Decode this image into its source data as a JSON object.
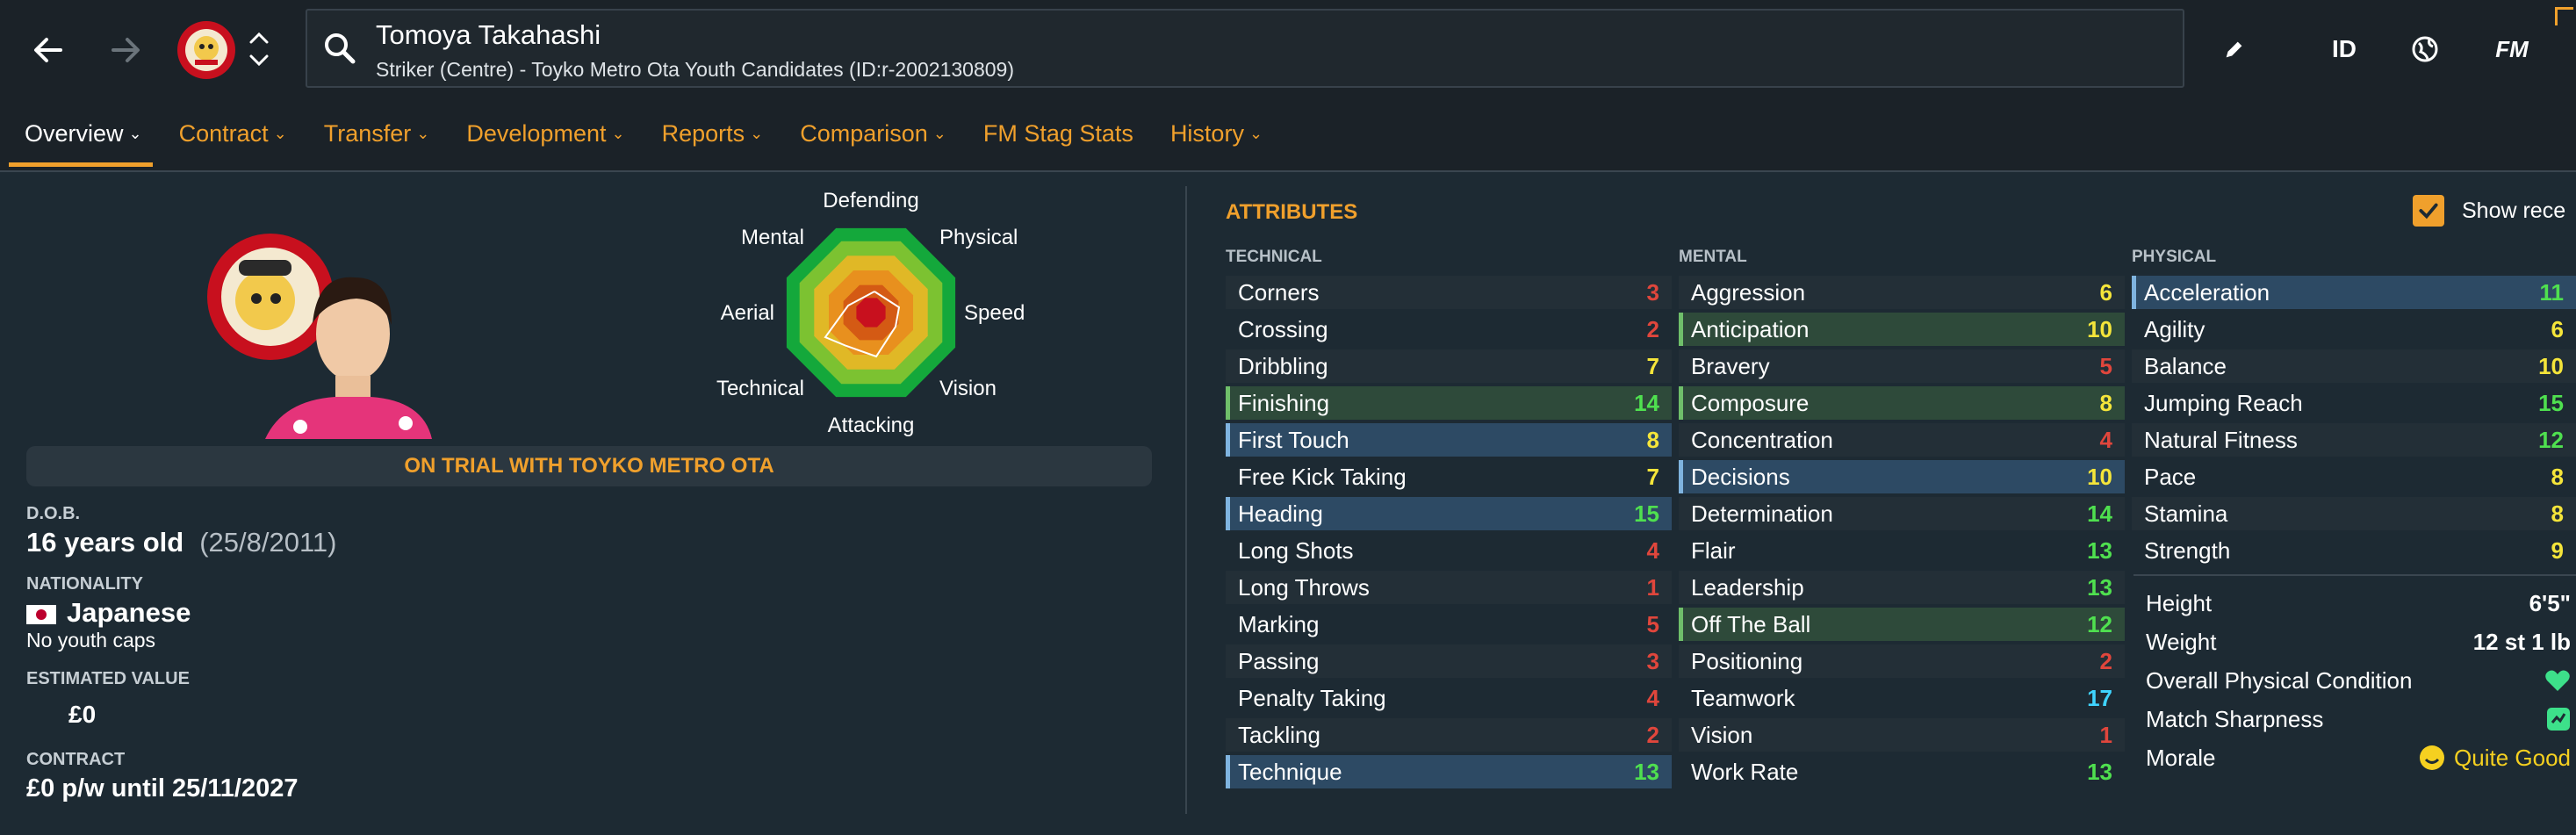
{
  "header": {
    "player_name": "Tomoya Takahashi",
    "player_subtitle": "Striker (Centre) - Toyko Metro Ota Youth Candidates (ID:r-2002130809)",
    "tool_id_label": "ID",
    "tool_fm_label": "FM",
    "icons": [
      "back-arrow-icon",
      "forward-arrow-icon",
      "club-crest",
      "up-down-chevron-icon",
      "search-icon",
      "pencil-icon",
      "globe-icon"
    ]
  },
  "tabs": [
    {
      "label": "Overview",
      "has_menu": true,
      "active": true
    },
    {
      "label": "Contract",
      "has_menu": true
    },
    {
      "label": "Transfer",
      "has_menu": true
    },
    {
      "label": "Development",
      "has_menu": true
    },
    {
      "label": "Reports",
      "has_menu": true
    },
    {
      "label": "Comparison",
      "has_menu": true
    },
    {
      "label": "FM Stag Stats",
      "has_menu": false
    },
    {
      "label": "History",
      "has_menu": true
    }
  ],
  "radar": {
    "labels": {
      "defending": "Defending",
      "physical": "Physical",
      "speed": "Speed",
      "vision": "Vision",
      "attacking": "Attacking",
      "technical": "Technical",
      "aerial": "Aerial",
      "mental": "Mental"
    },
    "ring_colors": [
      "#14a83b",
      "#7cc231",
      "#e0b826",
      "#e8901e",
      "#d45a14",
      "#c8101e"
    ]
  },
  "profile": {
    "trial_banner": "ON TRIAL WITH TOYKO METRO OTA",
    "dob_label": "D.O.B.",
    "age": "16 years old",
    "dob_date": "(25/8/2011)",
    "nationality_label": "NATIONALITY",
    "nationality": "Japanese",
    "youth_caps": "No youth caps",
    "value_label": "ESTIMATED VALUE",
    "value": "£0",
    "contract_label": "CONTRACT",
    "contract": "£0 p/w until 25/11/2027"
  },
  "attributes": {
    "title": "ATTRIBUTES",
    "show_recent_label": "Show rece",
    "technical": {
      "heading": "TECHNICAL",
      "items": [
        {
          "name": "Corners",
          "value": "3",
          "color": "#e0463c",
          "hl": ""
        },
        {
          "name": "Crossing",
          "value": "2",
          "color": "#e0463c",
          "hl": ""
        },
        {
          "name": "Dribbling",
          "value": "7",
          "color": "#f5e53a",
          "hl": ""
        },
        {
          "name": "Finishing",
          "value": "14",
          "color": "#4fe04f",
          "hl": "green"
        },
        {
          "name": "First Touch",
          "value": "8",
          "color": "#f5e53a",
          "hl": "blue"
        },
        {
          "name": "Free Kick Taking",
          "value": "7",
          "color": "#f5e53a",
          "hl": ""
        },
        {
          "name": "Heading",
          "value": "15",
          "color": "#4fe04f",
          "hl": "blue"
        },
        {
          "name": "Long Shots",
          "value": "4",
          "color": "#e0463c",
          "hl": ""
        },
        {
          "name": "Long Throws",
          "value": "1",
          "color": "#e0463c",
          "hl": ""
        },
        {
          "name": "Marking",
          "value": "5",
          "color": "#e0463c",
          "hl": ""
        },
        {
          "name": "Passing",
          "value": "3",
          "color": "#e0463c",
          "hl": ""
        },
        {
          "name": "Penalty Taking",
          "value": "4",
          "color": "#e0463c",
          "hl": ""
        },
        {
          "name": "Tackling",
          "value": "2",
          "color": "#e0463c",
          "hl": ""
        },
        {
          "name": "Technique",
          "value": "13",
          "color": "#4fe04f",
          "hl": "blue"
        }
      ]
    },
    "mental": {
      "heading": "MENTAL",
      "items": [
        {
          "name": "Aggression",
          "value": "6",
          "color": "#f5e53a",
          "hl": ""
        },
        {
          "name": "Anticipation",
          "value": "10",
          "color": "#f5e53a",
          "hl": "green"
        },
        {
          "name": "Bravery",
          "value": "5",
          "color": "#e0463c",
          "hl": ""
        },
        {
          "name": "Composure",
          "value": "8",
          "color": "#f5e53a",
          "hl": "green"
        },
        {
          "name": "Concentration",
          "value": "4",
          "color": "#e0463c",
          "hl": ""
        },
        {
          "name": "Decisions",
          "value": "10",
          "color": "#f5e53a",
          "hl": "blue"
        },
        {
          "name": "Determination",
          "value": "14",
          "color": "#4fe04f",
          "hl": ""
        },
        {
          "name": "Flair",
          "value": "13",
          "color": "#4fe04f",
          "hl": ""
        },
        {
          "name": "Leadership",
          "value": "13",
          "color": "#4fe04f",
          "hl": ""
        },
        {
          "name": "Off The Ball",
          "value": "12",
          "color": "#4fe04f",
          "hl": "green"
        },
        {
          "name": "Positioning",
          "value": "2",
          "color": "#e0463c",
          "hl": ""
        },
        {
          "name": "Teamwork",
          "value": "17",
          "color": "#3fd4ff",
          "hl": ""
        },
        {
          "name": "Vision",
          "value": "1",
          "color": "#e0463c",
          "hl": ""
        },
        {
          "name": "Work Rate",
          "value": "13",
          "color": "#4fe04f",
          "hl": ""
        }
      ]
    },
    "physical": {
      "heading": "PHYSICAL",
      "items": [
        {
          "name": "Acceleration",
          "value": "11",
          "color": "#4fe04f",
          "hl": "blue"
        },
        {
          "name": "Agility",
          "value": "6",
          "color": "#f5e53a",
          "hl": ""
        },
        {
          "name": "Balance",
          "value": "10",
          "color": "#f5e53a",
          "hl": ""
        },
        {
          "name": "Jumping Reach",
          "value": "15",
          "color": "#4fe04f",
          "hl": ""
        },
        {
          "name": "Natural Fitness",
          "value": "12",
          "color": "#4fe04f",
          "hl": ""
        },
        {
          "name": "Pace",
          "value": "8",
          "color": "#f5e53a",
          "hl": ""
        },
        {
          "name": "Stamina",
          "value": "8",
          "color": "#f5e53a",
          "hl": ""
        },
        {
          "name": "Strength",
          "value": "9",
          "color": "#f5e53a",
          "hl": ""
        }
      ]
    },
    "physical_info": {
      "height_label": "Height",
      "height": "6'5\"",
      "weight_label": "Weight",
      "weight": "12 st 1 lb",
      "condition_label": "Overall Physical Condition",
      "condition_icon": "heart-icon",
      "sharpness_label": "Match Sharpness",
      "sharpness_icon": "sharpness-icon",
      "morale_label": "Morale",
      "morale": "Quite Good",
      "morale_icon": "smiley-icon"
    }
  }
}
